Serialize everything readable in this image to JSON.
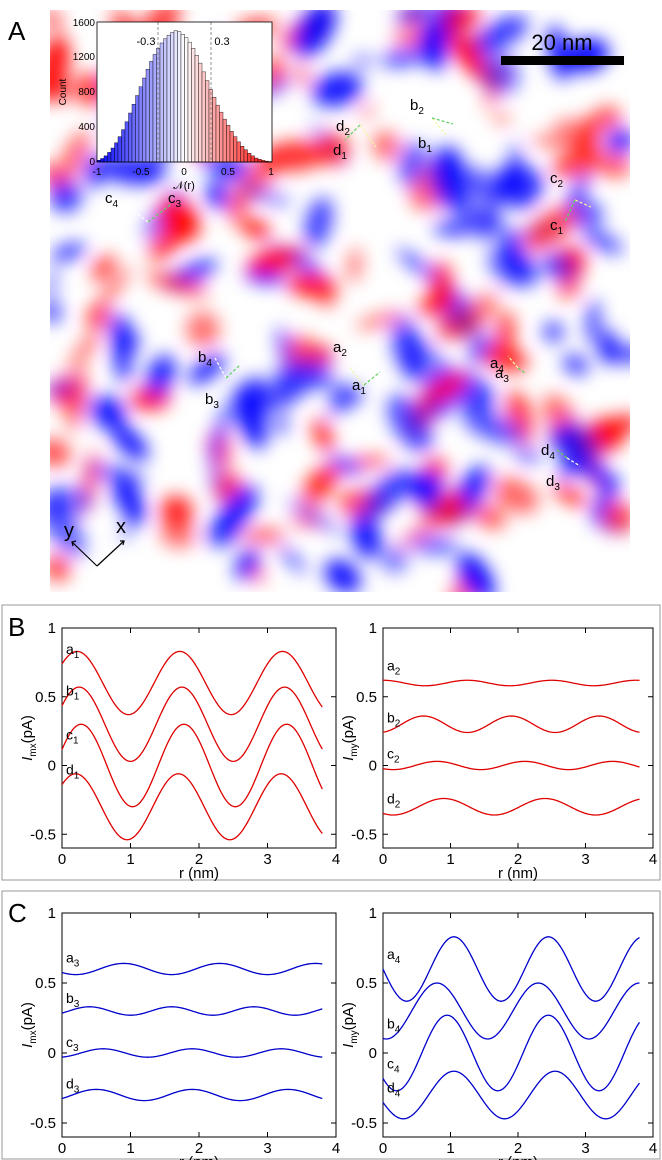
{
  "panel_a": {
    "letter": "A",
    "scalebar_label": "20 nm",
    "inset": {
      "ylabel": "Count",
      "yticks": [
        "0",
        "400",
        "800",
        "1200",
        "1600"
      ],
      "xticks": [
        "-1",
        "-0.5",
        "0",
        "0.5",
        "1"
      ],
      "xlabel": "𝒩(r)",
      "threshold_labels": [
        "-0.3",
        "0.3"
      ]
    },
    "axes_labels": {
      "y": "y",
      "x": "x"
    },
    "site_labels": [
      {
        "base": "d",
        "sub": "2"
      },
      {
        "base": "d",
        "sub": "1"
      },
      {
        "base": "b",
        "sub": "2"
      },
      {
        "base": "b",
        "sub": "1"
      },
      {
        "base": "c",
        "sub": "2"
      },
      {
        "base": "c",
        "sub": "1"
      },
      {
        "base": "c",
        "sub": "4"
      },
      {
        "base": "c",
        "sub": "3"
      },
      {
        "base": "a",
        "sub": "2"
      },
      {
        "base": "a",
        "sub": "1"
      },
      {
        "base": "b",
        "sub": "4"
      },
      {
        "base": "b",
        "sub": "3"
      },
      {
        "base": "a",
        "sub": "4"
      },
      {
        "base": "a",
        "sub": "3"
      },
      {
        "base": "d",
        "sub": "4"
      },
      {
        "base": "d",
        "sub": "3"
      }
    ]
  },
  "panel_b": {
    "letter": "B"
  },
  "panel_c": {
    "letter": "C"
  },
  "chart_data": [
    {
      "type": "heatmap",
      "description_scale": "20 nm",
      "colormap": [
        "#0000ff",
        "#ffffff",
        "#ff0000"
      ],
      "value_range": [
        -1,
        1
      ]
    },
    {
      "type": "bar",
      "xlabel": "𝒩(r)",
      "ylabel": "Count",
      "xlim": [
        -1,
        1
      ],
      "ylim": [
        0,
        1600
      ],
      "annotations": [
        "-0.3",
        "0.3"
      ],
      "categories": [
        -0.98,
        -0.94,
        -0.9,
        -0.86,
        -0.82,
        -0.78,
        -0.74,
        -0.7,
        -0.66,
        -0.62,
        -0.58,
        -0.54,
        -0.5,
        -0.46,
        -0.42,
        -0.38,
        -0.34,
        -0.3,
        -0.26,
        -0.22,
        -0.18,
        -0.14,
        -0.1,
        -0.06,
        -0.02,
        0.02,
        0.06,
        0.1,
        0.14,
        0.18,
        0.22,
        0.26,
        0.3,
        0.34,
        0.38,
        0.42,
        0.46,
        0.5,
        0.54,
        0.58,
        0.62,
        0.66,
        0.7,
        0.74,
        0.78,
        0.82,
        0.86,
        0.9,
        0.94,
        0.98
      ],
      "values": [
        20,
        40,
        70,
        110,
        160,
        220,
        290,
        370,
        460,
        560,
        660,
        760,
        860,
        960,
        1060,
        1150,
        1230,
        1300,
        1360,
        1410,
        1450,
        1480,
        1500,
        1490,
        1460,
        1420,
        1370,
        1300,
        1220,
        1130,
        1030,
        930,
        830,
        740,
        650,
        570,
        490,
        420,
        350,
        290,
        230,
        180,
        140,
        100,
        70,
        45,
        30,
        18,
        10,
        5
      ]
    },
    {
      "type": "line",
      "xlabel": "r (nm)",
      "ylabel": "I_mx (pA)",
      "xlim": [
        0,
        4
      ],
      "ylim": [
        -0.6,
        1
      ],
      "xticks": [
        "0",
        "1",
        "2",
        "3",
        "4"
      ],
      "yticks": [
        "-0.5",
        "0",
        "0.5",
        "1"
      ],
      "color": "#e00000",
      "series": [
        {
          "name": "a1",
          "offset": 0.6,
          "amp": 0.23,
          "period": 1.5,
          "phase": 0.22,
          "x_end": 3.8
        },
        {
          "name": "b1",
          "offset": 0.3,
          "amp": 0.27,
          "period": 1.5,
          "phase": 0.25,
          "x_end": 3.8
        },
        {
          "name": "c1",
          "offset": 0.0,
          "amp": 0.3,
          "period": 1.5,
          "phase": 0.28,
          "x_end": 3.8
        },
        {
          "name": "d1",
          "offset": -0.3,
          "amp": 0.24,
          "period": 1.5,
          "phase": 0.2,
          "x_end": 3.8
        }
      ],
      "series_labels": [
        {
          "base": "a",
          "sub": "1"
        },
        {
          "base": "b",
          "sub": "1"
        },
        {
          "base": "c",
          "sub": "1"
        },
        {
          "base": "d",
          "sub": "1"
        }
      ]
    },
    {
      "type": "line",
      "xlabel": "r (nm)",
      "ylabel": "I_my (pA)",
      "xlim": [
        0,
        4
      ],
      "ylim": [
        -0.6,
        1
      ],
      "xticks": [
        "0",
        "1",
        "2",
        "3",
        "4"
      ],
      "yticks": [
        "-0.5",
        "0",
        "0.5",
        "1"
      ],
      "color": "#e00000",
      "series": [
        {
          "name": "a2",
          "offset": 0.6,
          "amp": 0.02,
          "period": 1.25,
          "phase": 0.0,
          "x_end": 3.8
        },
        {
          "name": "b2",
          "offset": 0.3,
          "amp": 0.06,
          "period": 1.3,
          "phase": 0.6,
          "x_end": 3.8
        },
        {
          "name": "c2",
          "offset": 0.0,
          "amp": 0.03,
          "period": 1.3,
          "phase": 0.8,
          "x_end": 3.8
        },
        {
          "name": "d2",
          "offset": -0.3,
          "amp": 0.06,
          "period": 1.5,
          "phase": 0.9,
          "x_end": 3.8
        }
      ],
      "series_labels": [
        {
          "base": "a",
          "sub": "2"
        },
        {
          "base": "b",
          "sub": "2"
        },
        {
          "base": "c",
          "sub": "2"
        },
        {
          "base": "d",
          "sub": "2"
        }
      ]
    },
    {
      "type": "line",
      "xlabel": "r (nm)",
      "ylabel": "I_mx (pA)",
      "xlim": [
        0,
        4
      ],
      "ylim": [
        -0.6,
        1
      ],
      "xticks": [
        "0",
        "1",
        "2",
        "3",
        "4"
      ],
      "yticks": [
        "-0.5",
        "0",
        "0.5",
        "1"
      ],
      "color": "#0000cc",
      "series": [
        {
          "name": "a3",
          "offset": 0.6,
          "amp": 0.04,
          "period": 1.4,
          "phase": 0.9,
          "x_end": 3.8
        },
        {
          "name": "b3",
          "offset": 0.3,
          "amp": 0.03,
          "period": 1.2,
          "phase": 0.4,
          "x_end": 3.8
        },
        {
          "name": "c3",
          "offset": 0.0,
          "amp": 0.03,
          "period": 1.3,
          "phase": 0.6,
          "x_end": 3.8
        },
        {
          "name": "d3",
          "offset": -0.3,
          "amp": 0.04,
          "period": 1.4,
          "phase": 0.5,
          "x_end": 3.8
        }
      ],
      "series_labels": [
        {
          "base": "a",
          "sub": "3"
        },
        {
          "base": "b",
          "sub": "3"
        },
        {
          "base": "c",
          "sub": "3"
        },
        {
          "base": "d",
          "sub": "3"
        }
      ]
    },
    {
      "type": "line",
      "xlabel": "r (nm)",
      "ylabel": "I_my (pA)",
      "xlim": [
        0,
        4
      ],
      "ylim": [
        -0.6,
        1
      ],
      "xticks": [
        "0",
        "1",
        "2",
        "3",
        "4"
      ],
      "yticks": [
        "-0.5",
        "0",
        "0.5",
        "1"
      ],
      "color": "#0000cc",
      "series": [
        {
          "name": "a4",
          "offset": 0.6,
          "amp": 0.23,
          "period": 1.4,
          "phase": 1.05,
          "x_end": 3.8
        },
        {
          "name": "b4",
          "offset": 0.3,
          "amp": 0.2,
          "period": 1.5,
          "phase": 0.8,
          "x_end": 3.8
        },
        {
          "name": "c4",
          "offset": 0.0,
          "amp": 0.27,
          "period": 1.5,
          "phase": 0.95,
          "x_end": 3.8
        },
        {
          "name": "d4",
          "offset": -0.3,
          "amp": 0.17,
          "period": 1.5,
          "phase": 1.05,
          "x_end": 3.8
        }
      ],
      "series_labels": [
        {
          "base": "a",
          "sub": "4"
        },
        {
          "base": "b",
          "sub": "4"
        },
        {
          "base": "c",
          "sub": "4"
        },
        {
          "base": "d",
          "sub": "4"
        }
      ]
    }
  ]
}
